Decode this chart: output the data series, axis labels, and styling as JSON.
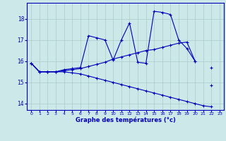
{
  "title": "Graphe des températures (°c)",
  "bg_color": "#cce8e8",
  "line_color": "#0000bb",
  "grid_color": "#aacccc",
  "hours": [
    0,
    1,
    2,
    3,
    4,
    5,
    6,
    7,
    8,
    9,
    10,
    11,
    12,
    13,
    14,
    15,
    16,
    17,
    18,
    19,
    20,
    21,
    22,
    23
  ],
  "line1": [
    15.9,
    15.5,
    15.5,
    15.5,
    15.6,
    15.65,
    15.7,
    17.2,
    17.1,
    17.0,
    16.05,
    17.0,
    17.8,
    15.95,
    15.9,
    18.35,
    18.3,
    18.2,
    17.0,
    16.6,
    16.0,
    null,
    15.7,
    null
  ],
  "line2": [
    15.9,
    15.5,
    15.5,
    15.5,
    15.55,
    15.6,
    15.65,
    15.75,
    15.85,
    15.95,
    16.1,
    16.2,
    16.3,
    16.4,
    16.5,
    16.55,
    16.65,
    16.75,
    16.85,
    16.9,
    16.0,
    null,
    14.85,
    null
  ],
  "line3": [
    15.9,
    15.5,
    15.5,
    15.5,
    15.5,
    15.45,
    15.4,
    15.3,
    15.2,
    15.1,
    15.0,
    14.9,
    14.8,
    14.7,
    14.6,
    14.5,
    14.4,
    14.3,
    14.2,
    14.1,
    14.0,
    13.9,
    13.85,
    null
  ],
  "ylim": [
    13.7,
    18.75
  ],
  "yticks": [
    14,
    15,
    16,
    17,
    18
  ],
  "xlim": [
    -0.5,
    23.5
  ],
  "xticks": [
    0,
    1,
    2,
    3,
    4,
    5,
    6,
    7,
    8,
    9,
    10,
    11,
    12,
    13,
    14,
    15,
    16,
    17,
    18,
    19,
    20,
    21,
    22,
    23
  ],
  "figsize": [
    3.2,
    2.0
  ],
  "dpi": 100
}
